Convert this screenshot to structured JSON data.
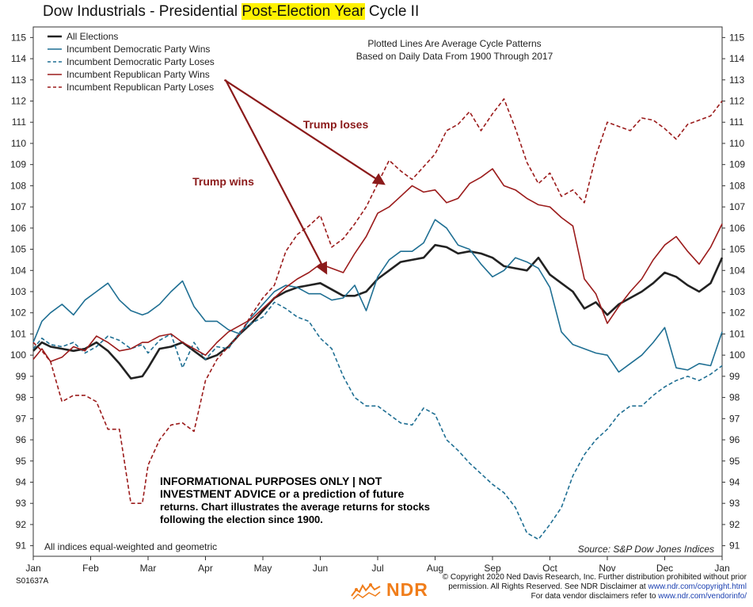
{
  "title": {
    "pre": "Dow Industrials - Presidential ",
    "highlight": "Post-Election Year",
    "post": " Cycle II",
    "highlight_color": "#fff200"
  },
  "chart_data": {
    "type": "line",
    "title": "Dow Industrials - Presidential Post-Election Year Cycle II",
    "xlabel": "",
    "ylabel": "",
    "x_ticks": [
      "Jan",
      "Feb",
      "Mar",
      "Apr",
      "May",
      "Jun",
      "Jul",
      "Aug",
      "Sep",
      "Oct",
      "Nov",
      "Dec",
      "Jan"
    ],
    "xlim": [
      0,
      12
    ],
    "ylim": [
      90.5,
      115.5
    ],
    "y_ticks": [
      91,
      92,
      93,
      94,
      95,
      96,
      97,
      98,
      99,
      100,
      101,
      102,
      103,
      104,
      105,
      106,
      107,
      108,
      109,
      110,
      111,
      112,
      113,
      114,
      115
    ],
    "y_axis_sides": [
      "left",
      "right"
    ],
    "grid": false,
    "legend_position": "top-left",
    "note_lines": [
      "Plotted Lines Are Average Cycle Patterns",
      "Based on Daily Data From 1900 Through 2017"
    ],
    "footnote": "All indices equal-weighted and geometric",
    "source": "Source:  S&P Dow Jones Indices",
    "disclaimer": [
      "INFORMATIONAL PURPOSES ONLY | NOT",
      "INVESTMENT ADVICE or a prediction of future",
      "returns. Chart illustrates the average returns for stocks",
      "following the election since 1900."
    ],
    "annotations": [
      {
        "text": "Trump loses",
        "color": "#8b1a1a",
        "points_to_series": "Incumbent Republican Party Loses",
        "x_from": 3.33,
        "y_from": 113.0,
        "x_to": 6.1,
        "y_to": 108.1
      },
      {
        "text": "Trump wins",
        "color": "#8b1a1a",
        "points_to_series": "Incumbent Republican Party Wins",
        "x_from": 3.35,
        "y_from": 113.0,
        "x_to": 5.1,
        "y_to": 103.9
      }
    ],
    "series": [
      {
        "name": "All Elections",
        "color": "#222222",
        "dash": "solid",
        "width": 2.6,
        "x": [
          0,
          0.15,
          0.3,
          0.5,
          0.7,
          0.9,
          1.1,
          1.3,
          1.5,
          1.7,
          1.9,
          2.0,
          2.2,
          2.4,
          2.6,
          2.8,
          3.0,
          3.2,
          3.4,
          3.6,
          3.8,
          4.0,
          4.2,
          4.4,
          4.6,
          4.8,
          5.0,
          5.2,
          5.4,
          5.6,
          5.8,
          6.0,
          6.2,
          6.4,
          6.6,
          6.8,
          7.0,
          7.2,
          7.4,
          7.6,
          7.8,
          8.0,
          8.2,
          8.4,
          8.6,
          8.8,
          9.0,
          9.2,
          9.4,
          9.6,
          9.8,
          10.0,
          10.2,
          10.4,
          10.6,
          10.8,
          11.0,
          11.2,
          11.4,
          11.6,
          11.8,
          12.0
        ],
        "y": [
          100.2,
          100.6,
          100.4,
          100.3,
          100.2,
          100.3,
          100.6,
          100.2,
          99.6,
          98.9,
          99.0,
          99.4,
          100.3,
          100.4,
          100.6,
          100.2,
          99.8,
          100.0,
          100.4,
          101.0,
          101.5,
          102.1,
          102.7,
          103.0,
          103.2,
          103.3,
          103.4,
          103.1,
          102.8,
          102.8,
          103.0,
          103.6,
          104.0,
          104.4,
          104.5,
          104.6,
          105.2,
          105.1,
          104.8,
          104.9,
          104.8,
          104.6,
          104.2,
          104.1,
          104.0,
          104.6,
          103.8,
          103.4,
          103.0,
          102.2,
          102.5,
          101.9,
          102.4,
          102.7,
          103.0,
          103.4,
          103.9,
          103.7,
          103.3,
          103.0,
          103.4,
          104.6
        ]
      },
      {
        "name": "Incumbent Democratic Party Wins",
        "color": "#1f6f93",
        "dash": "solid",
        "width": 1.6,
        "x": [
          0,
          0.15,
          0.3,
          0.5,
          0.7,
          0.9,
          1.1,
          1.3,
          1.5,
          1.7,
          1.9,
          2.0,
          2.2,
          2.4,
          2.6,
          2.8,
          3.0,
          3.2,
          3.4,
          3.6,
          3.8,
          4.0,
          4.2,
          4.4,
          4.6,
          4.8,
          5.0,
          5.2,
          5.4,
          5.6,
          5.8,
          6.0,
          6.2,
          6.4,
          6.6,
          6.8,
          7.0,
          7.2,
          7.4,
          7.6,
          7.8,
          8.0,
          8.2,
          8.4,
          8.6,
          8.8,
          9.0,
          9.2,
          9.4,
          9.6,
          9.8,
          10.0,
          10.2,
          10.4,
          10.6,
          10.8,
          11.0,
          11.2,
          11.4,
          11.6,
          11.8,
          12.0
        ],
        "y": [
          100.6,
          101.6,
          102.0,
          102.4,
          101.9,
          102.6,
          103.0,
          103.4,
          102.6,
          102.1,
          101.9,
          102.0,
          102.4,
          103.0,
          103.5,
          102.3,
          101.6,
          101.6,
          101.2,
          101.0,
          101.8,
          102.4,
          103.0,
          103.3,
          103.2,
          102.9,
          102.9,
          102.6,
          102.7,
          103.3,
          102.1,
          103.7,
          104.5,
          104.9,
          104.9,
          105.3,
          106.4,
          106.0,
          105.2,
          105.0,
          104.3,
          103.7,
          104.0,
          104.6,
          104.4,
          104.1,
          103.2,
          101.1,
          100.5,
          100.3,
          100.1,
          100.0,
          99.2,
          99.6,
          100.0,
          100.6,
          101.3,
          99.4,
          99.3,
          99.6,
          99.5,
          101.1
        ]
      },
      {
        "name": "Incumbent Democratic Party Loses",
        "color": "#1f6f93",
        "dash": "dashed",
        "width": 1.6,
        "x": [
          0,
          0.15,
          0.3,
          0.5,
          0.7,
          0.9,
          1.1,
          1.3,
          1.5,
          1.7,
          1.9,
          2.0,
          2.2,
          2.4,
          2.6,
          2.8,
          3.0,
          3.2,
          3.4,
          3.6,
          3.8,
          4.0,
          4.2,
          4.4,
          4.6,
          4.8,
          5.0,
          5.2,
          5.4,
          5.6,
          5.8,
          6.0,
          6.2,
          6.4,
          6.6,
          6.8,
          7.0,
          7.2,
          7.4,
          7.6,
          7.8,
          8.0,
          8.2,
          8.4,
          8.6,
          8.8,
          9.0,
          9.2,
          9.4,
          9.6,
          9.8,
          10.0,
          10.2,
          10.4,
          10.6,
          10.8,
          11.0,
          11.2,
          11.4,
          11.6,
          11.8,
          12.0
        ],
        "y": [
          100.3,
          100.8,
          100.5,
          100.4,
          100.6,
          100.1,
          100.4,
          100.9,
          100.7,
          100.3,
          100.5,
          100.1,
          100.7,
          101.0,
          99.4,
          100.6,
          99.8,
          100.4,
          100.3,
          101.1,
          101.5,
          101.8,
          102.5,
          102.2,
          101.8,
          101.6,
          100.8,
          100.3,
          99.0,
          98.0,
          97.6,
          97.6,
          97.2,
          96.8,
          96.7,
          97.5,
          97.2,
          96.0,
          95.5,
          94.9,
          94.4,
          93.9,
          93.5,
          92.8,
          91.6,
          91.3,
          92.0,
          92.8,
          94.3,
          95.3,
          96.0,
          96.5,
          97.2,
          97.6,
          97.6,
          98.1,
          98.5,
          98.8,
          99.0,
          98.8,
          99.1,
          99.5
        ]
      },
      {
        "name": "Incumbent Republican Party Wins",
        "color": "#9b1b1b",
        "dash": "solid",
        "width": 1.6,
        "x": [
          0,
          0.15,
          0.3,
          0.5,
          0.7,
          0.9,
          1.1,
          1.3,
          1.5,
          1.7,
          1.9,
          2.0,
          2.2,
          2.4,
          2.6,
          2.8,
          3.0,
          3.2,
          3.4,
          3.6,
          3.8,
          4.0,
          4.2,
          4.4,
          4.6,
          4.8,
          5.0,
          5.2,
          5.4,
          5.6,
          5.8,
          6.0,
          6.2,
          6.4,
          6.6,
          6.8,
          7.0,
          7.2,
          7.4,
          7.6,
          7.8,
          8.0,
          8.2,
          8.4,
          8.6,
          8.8,
          9.0,
          9.2,
          9.4,
          9.6,
          9.8,
          10.0,
          10.2,
          10.4,
          10.6,
          10.8,
          11.0,
          11.2,
          11.4,
          11.6,
          11.8,
          12.0
        ],
        "y": [
          99.8,
          100.3,
          99.7,
          99.9,
          100.4,
          100.2,
          100.9,
          100.6,
          100.2,
          100.3,
          100.6,
          100.6,
          100.9,
          101.0,
          100.6,
          100.3,
          100.0,
          100.6,
          101.1,
          101.4,
          101.7,
          102.2,
          102.7,
          103.2,
          103.6,
          103.9,
          104.3,
          104.1,
          103.9,
          104.8,
          105.6,
          106.7,
          107.0,
          107.5,
          108.0,
          107.7,
          107.8,
          107.2,
          107.4,
          108.1,
          108.4,
          108.8,
          108.0,
          107.8,
          107.4,
          107.1,
          107.0,
          106.5,
          106.1,
          103.6,
          102.9,
          101.5,
          102.3,
          103.0,
          103.6,
          104.5,
          105.2,
          105.6,
          104.9,
          104.3,
          105.1,
          106.2
        ]
      },
      {
        "name": "Incumbent Republican Party Loses",
        "color": "#9b1b1b",
        "dash": "dashed",
        "width": 1.6,
        "x": [
          0,
          0.15,
          0.3,
          0.5,
          0.7,
          0.9,
          1.1,
          1.3,
          1.5,
          1.7,
          1.9,
          2.0,
          2.2,
          2.4,
          2.6,
          2.8,
          3.0,
          3.2,
          3.4,
          3.6,
          3.8,
          4.0,
          4.2,
          4.4,
          4.6,
          4.8,
          5.0,
          5.2,
          5.4,
          5.6,
          5.8,
          6.0,
          6.2,
          6.4,
          6.6,
          6.8,
          7.0,
          7.2,
          7.4,
          7.6,
          7.8,
          8.0,
          8.2,
          8.4,
          8.6,
          8.8,
          9.0,
          9.2,
          9.4,
          9.6,
          9.8,
          10.0,
          10.2,
          10.4,
          10.6,
          10.8,
          11.0,
          11.2,
          11.4,
          11.6,
          11.8,
          12.0
        ],
        "y": [
          100.6,
          100.2,
          99.7,
          97.8,
          98.1,
          98.1,
          97.8,
          96.5,
          96.5,
          93.0,
          93.0,
          94.8,
          96.0,
          96.7,
          96.8,
          96.4,
          98.8,
          99.8,
          100.4,
          101.0,
          101.9,
          102.7,
          103.3,
          104.9,
          105.7,
          106.1,
          106.6,
          105.1,
          105.5,
          106.2,
          107.0,
          108.1,
          109.2,
          108.7,
          108.3,
          108.9,
          109.5,
          110.6,
          110.9,
          111.5,
          110.6,
          111.4,
          112.1,
          110.7,
          109.1,
          108.1,
          108.6,
          107.5,
          107.8,
          107.2,
          109.4,
          111.0,
          110.8,
          110.6,
          111.2,
          111.1,
          110.7,
          110.2,
          110.9,
          111.1,
          111.3,
          112.0
        ]
      }
    ]
  }
}
